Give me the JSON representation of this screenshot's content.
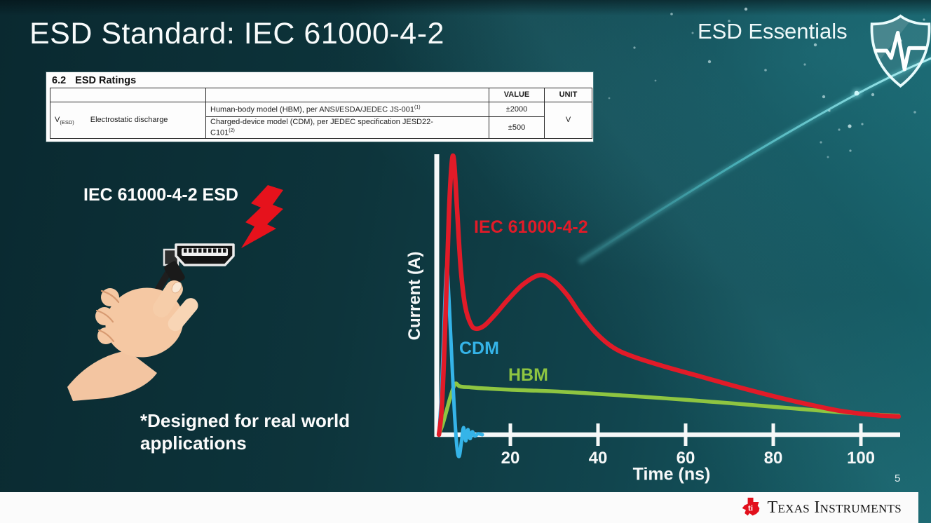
{
  "slide": {
    "title": "ESD Standard: IEC 61000-4-2",
    "badge": {
      "label": "ESD Essentials",
      "icon": "shield-pulse-icon"
    },
    "page_number": "5",
    "brand": "Texas Instruments"
  },
  "ratings_table": {
    "heading_number": "6.2",
    "heading_title": "ESD Ratings",
    "value_header": "VALUE",
    "unit_header": "UNIT",
    "symbol": "V",
    "symbol_sub": "(ESD)",
    "parameter": "Electrostatic discharge",
    "rows": [
      {
        "description": "Human-body model (HBM), per ANSI/ESDA/JEDEC JS-001",
        "footnote": "(1)",
        "value": "±2000"
      },
      {
        "description": "Charged-device model (CDM), per JEDEC specification JESD22-",
        "description2": "C101",
        "footnote": "(2)",
        "value": "±500"
      }
    ],
    "unit": "V"
  },
  "illustration": {
    "caption": "IEC 61000-4-2 ESD",
    "note_line1": "*Designed for real world",
    "note_line2": "applications"
  },
  "chart_data": {
    "type": "line",
    "title": "",
    "xlabel": "Time (ns)",
    "ylabel": "Current (A)",
    "x_ticks": [
      20,
      40,
      60,
      80,
      100
    ],
    "xlim": [
      0,
      110
    ],
    "ylim": [
      -1,
      10.5
    ],
    "y_units": "relative amplitude (no y ticks shown; IEC peak = 10)",
    "grid": false,
    "legend_position": "inline-annotations",
    "series": [
      {
        "name": "HBM",
        "color": "#8ec541",
        "x": [
          3.7,
          4.6,
          5.5,
          6.4,
          7.4,
          8.3,
          9.2,
          10.5,
          12,
          15,
          20,
          30,
          40,
          50,
          60,
          70,
          80,
          90,
          100,
          108.6
        ],
        "y": [
          0,
          0.4,
          0.9,
          1.4,
          1.82,
          1.74,
          1.71,
          1.7,
          1.68,
          1.65,
          1.61,
          1.55,
          1.46,
          1.36,
          1.25,
          1.13,
          1.0,
          0.87,
          0.75,
          0.68
        ]
      },
      {
        "name": "CDM",
        "color": "#35b4e8",
        "x": [
          3.7,
          4.3,
          4.9,
          5.45,
          6.0,
          6.6,
          7.2,
          7.8,
          8.3,
          8.8,
          9.3,
          9.8,
          10.3,
          10.8,
          11.3,
          11.9,
          12.6,
          13.6
        ],
        "y": [
          0,
          1.6,
          4.1,
          6.0,
          4.8,
          2.8,
          0.9,
          -0.45,
          -0.78,
          -0.3,
          0.25,
          -0.22,
          0.18,
          -0.14,
          0.1,
          -0.05,
          0.03,
          0.0
        ]
      },
      {
        "name": "IEC 61000-4-2",
        "color": "#e11b28",
        "x": [
          3.7,
          4.4,
          5.2,
          6.0,
          6.5,
          6.9,
          7.3,
          7.9,
          8.7,
          9.7,
          11,
          12.2,
          14,
          16.5,
          19.5,
          23,
          26.8,
          30,
          33,
          36,
          39.5,
          43.5,
          48,
          55,
          63,
          71,
          79,
          87,
          95,
          102,
          108.6
        ],
        "y": [
          0,
          1.1,
          4.2,
          8.0,
          9.5,
          10,
          9.5,
          7.9,
          5.9,
          4.6,
          3.95,
          3.8,
          3.9,
          4.3,
          4.85,
          5.4,
          5.72,
          5.5,
          5.0,
          4.32,
          3.65,
          3.12,
          2.8,
          2.45,
          2.1,
          1.75,
          1.42,
          1.12,
          0.86,
          0.72,
          0.65
        ]
      }
    ]
  },
  "colors": {
    "background_dark": "#0b2c32",
    "background_light": "#17626b",
    "accent_beam": "#6fe3e8",
    "iec_red": "#e11b28",
    "cdm_blue": "#35b4e8",
    "hbm_green": "#8ec541",
    "axis_white": "#f6f8f8",
    "footer_bg": "#fbfbfb",
    "ti_logo_red": "#e2101c"
  }
}
